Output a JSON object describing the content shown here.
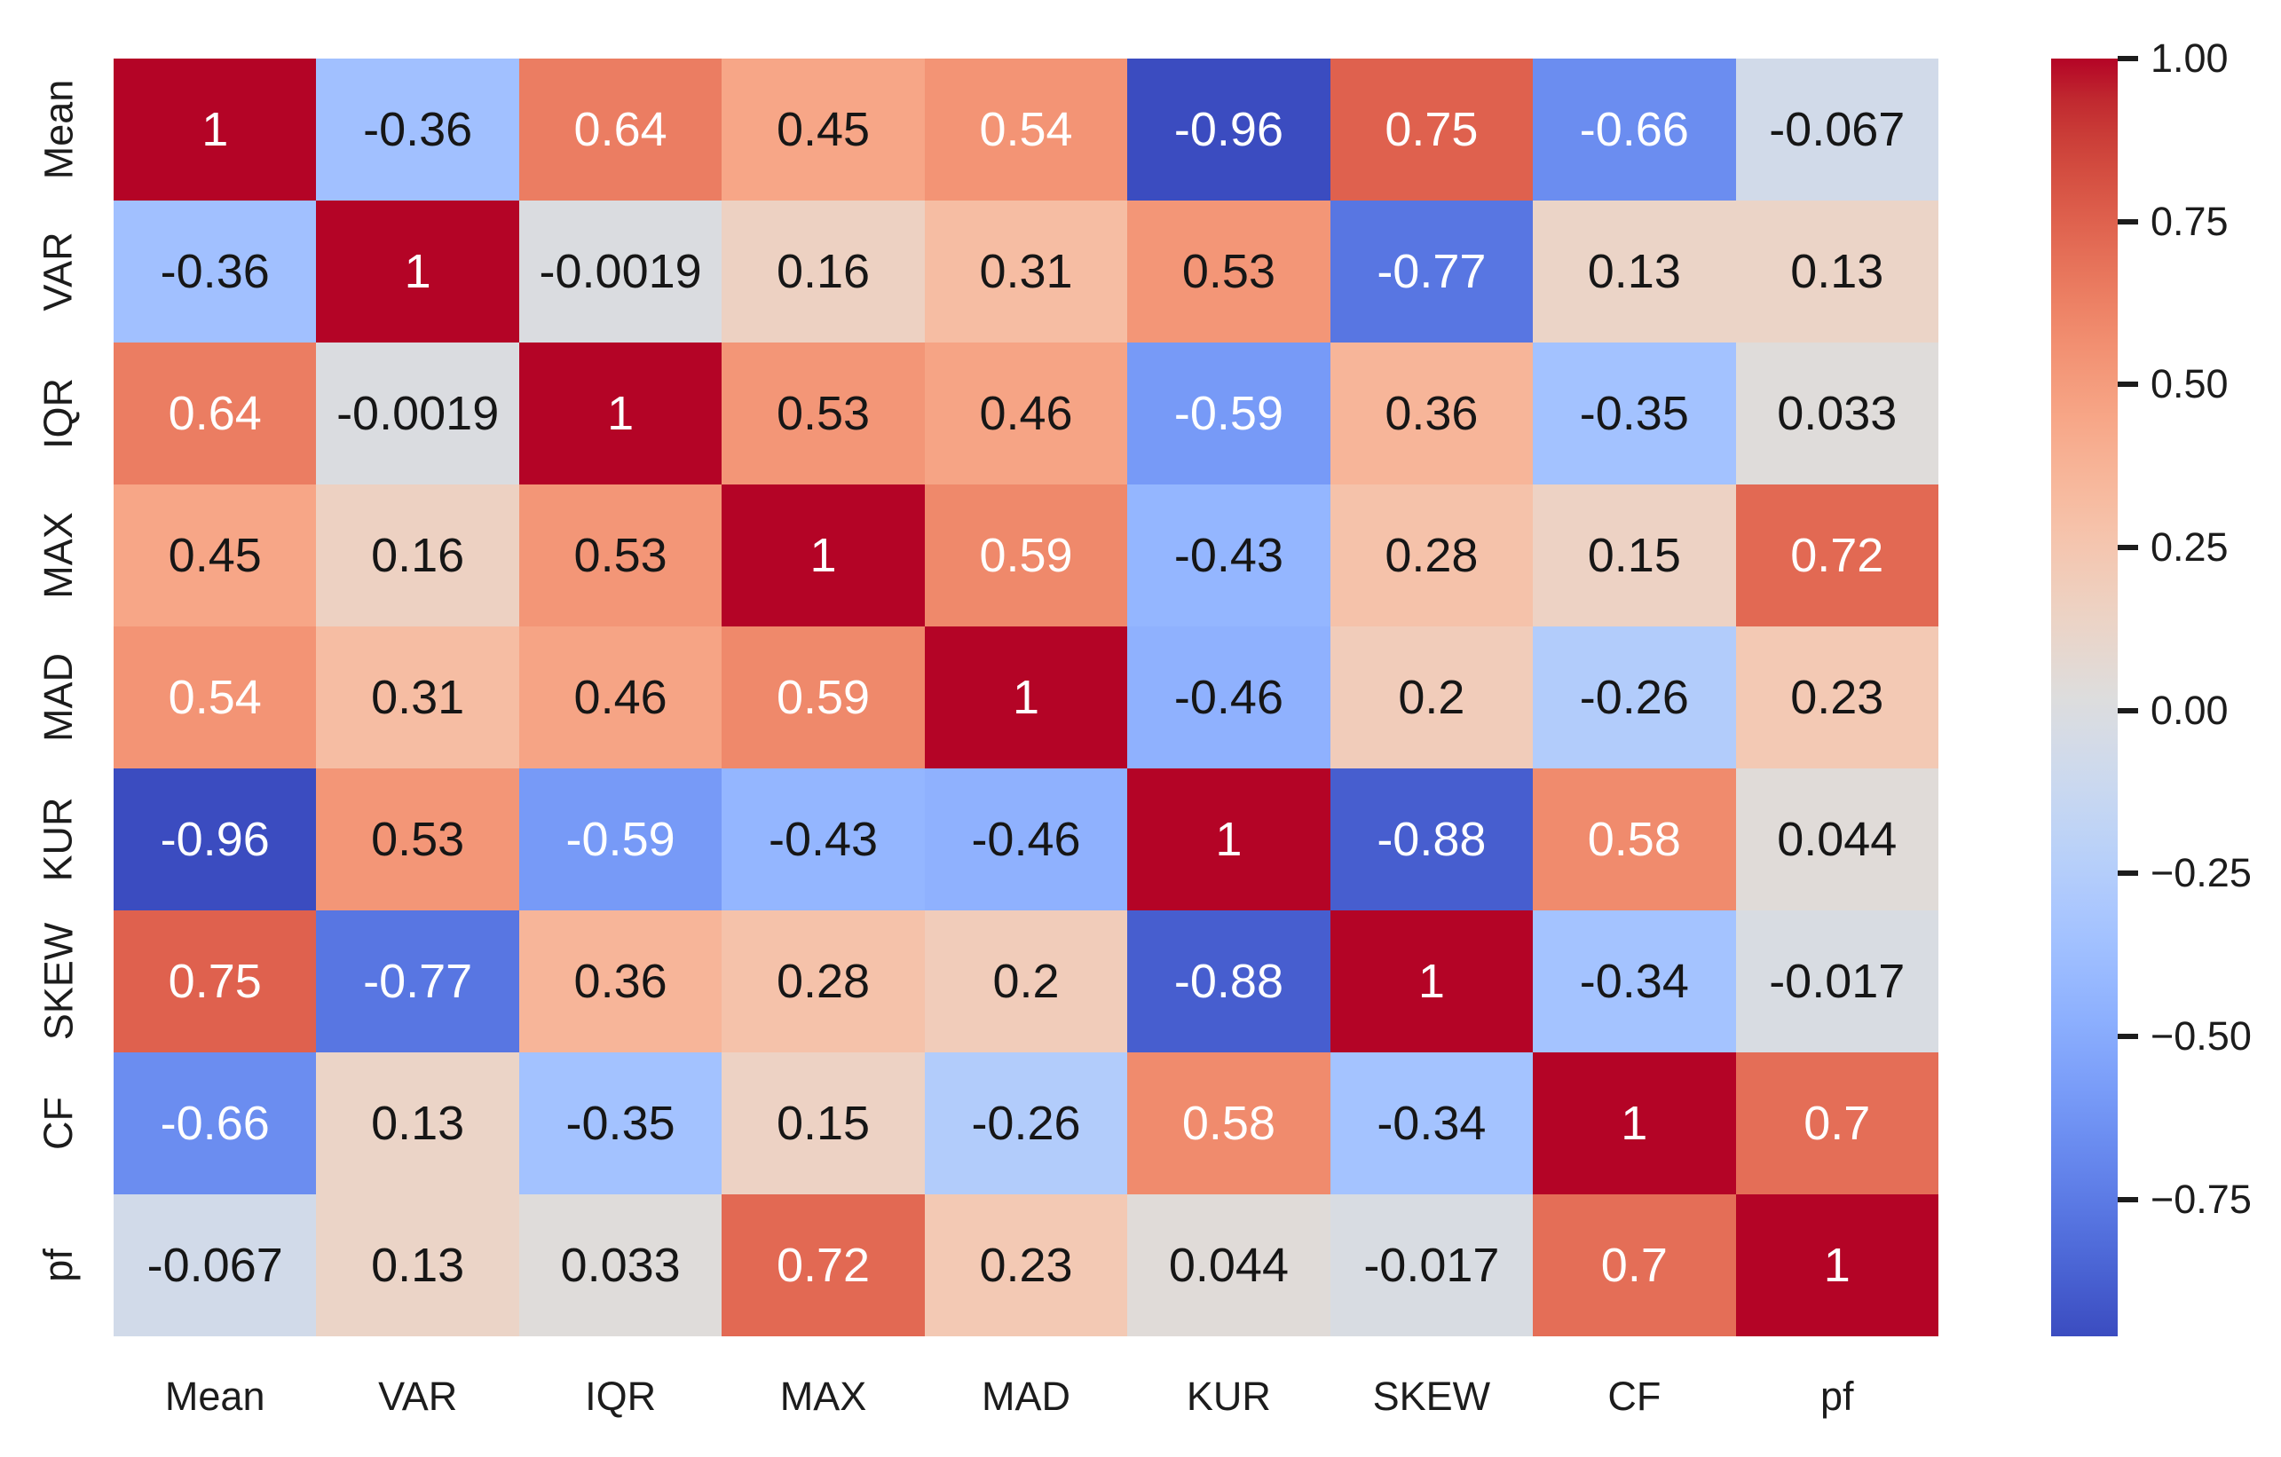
{
  "chart_data": {
    "type": "heatmap",
    "title": "",
    "xlabel": "",
    "ylabel": "",
    "grid": false,
    "legend": false,
    "categories": [
      "Mean",
      "VAR",
      "IQR",
      "MAX",
      "MAD",
      "KUR",
      "SKEW",
      "CF",
      "pf"
    ],
    "row_labels": [
      "Mean",
      "VAR",
      "IQR",
      "MAX",
      "MAD",
      "KUR",
      "SKEW",
      "CF",
      "pf"
    ],
    "col_labels": [
      "Mean",
      "VAR",
      "IQR",
      "MAX",
      "MAD",
      "KUR",
      "SKEW",
      "CF",
      "pf"
    ],
    "matrix": [
      [
        "1",
        "-0.36",
        "0.64",
        "0.45",
        "0.54",
        "-0.96",
        "0.75",
        "-0.66",
        "-0.067"
      ],
      [
        "-0.36",
        "1",
        "-0.0019",
        "0.16",
        "0.31",
        "0.53",
        "-0.77",
        "0.13",
        "0.13"
      ],
      [
        "0.64",
        "-0.0019",
        "1",
        "0.53",
        "0.46",
        "-0.59",
        "0.36",
        "-0.35",
        "0.033"
      ],
      [
        "0.45",
        "0.16",
        "0.53",
        "1",
        "0.59",
        "-0.43",
        "0.28",
        "0.15",
        "0.72"
      ],
      [
        "0.54",
        "0.31",
        "0.46",
        "0.59",
        "1",
        "-0.46",
        "0.2",
        "-0.26",
        "0.23"
      ],
      [
        "-0.96",
        "0.53",
        "-0.59",
        "-0.43",
        "-0.46",
        "1",
        "-0.88",
        "0.58",
        "0.044"
      ],
      [
        "0.75",
        "-0.77",
        "0.36",
        "0.28",
        "0.2",
        "-0.88",
        "1",
        "-0.34",
        "-0.017"
      ],
      [
        "-0.66",
        "0.13",
        "-0.35",
        "0.15",
        "-0.26",
        "0.58",
        "-0.34",
        "1",
        "0.7"
      ],
      [
        "-0.067",
        "0.13",
        "0.033",
        "0.72",
        "0.23",
        "0.044",
        "-0.017",
        "0.7",
        "1"
      ]
    ],
    "vmin": -0.96,
    "vmax": 1.0,
    "colormap": {
      "name": "coolwarm",
      "min": "#3b4cc0",
      "mid": "#dddddd",
      "max": "#b40426",
      "anchors": [
        "#3b4cc0",
        "#445acc",
        "#4d68d7",
        "#5775e1",
        "#6282ea",
        "#6c8ef1",
        "#779af7",
        "#82a5fb",
        "#8db0fe",
        "#98b9ff",
        "#a3c2ff",
        "#aec9fd",
        "#b8d0f9",
        "#c2d5f4",
        "#ccd9ee",
        "#d5dbe6",
        "#dddddd",
        "#e5d8d1",
        "#ecd3c5",
        "#f1ccb9",
        "#f5c4ad",
        "#f7bba0",
        "#f7b194",
        "#f7a687",
        "#f49a7b",
        "#f18d6f",
        "#ec7f63",
        "#e57058",
        "#de604d",
        "#d55042",
        "#cb3e38",
        "#c0282f",
        "#b40426"
      ]
    },
    "annotation_text_colors": {
      "light": "#ffffff",
      "dark": "#161616",
      "white_if_value_at_least": 0.535,
      "white_if_value_at_most": -0.55
    },
    "colorbar": {
      "position": "right",
      "ticks": [
        {
          "label": "1.00",
          "value": 1.0
        },
        {
          "label": "0.75",
          "value": 0.75
        },
        {
          "label": "0.50",
          "value": 0.5
        },
        {
          "label": "0.25",
          "value": 0.25
        },
        {
          "label": "0.00",
          "value": 0.0
        },
        {
          "label": "−0.25",
          "value": -0.25
        },
        {
          "label": "−0.50",
          "value": -0.5
        },
        {
          "label": "−0.75",
          "value": -0.75
        }
      ]
    }
  }
}
